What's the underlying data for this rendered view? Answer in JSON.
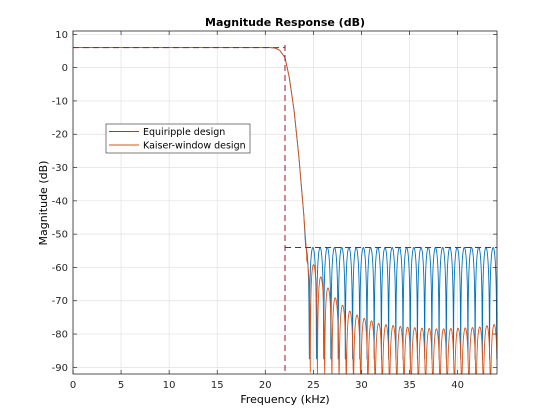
{
  "chart_data": {
    "type": "line",
    "title": "Magnitude Response (dB)",
    "xlabel": "Frequency (kHz)",
    "ylabel": "Magnitude (dB)",
    "xlim": [
      0,
      44.1
    ],
    "ylim": [
      -92,
      11
    ],
    "xticks": [
      0,
      5,
      10,
      15,
      20,
      25,
      30,
      35,
      40
    ],
    "yticks": [
      10,
      0,
      -10,
      -20,
      -30,
      -40,
      -50,
      -60,
      -70,
      -80,
      -90
    ],
    "grid": true,
    "legend_position": "upper-left",
    "passband_gain_db": 6.02,
    "stopband_level_db": -54,
    "edge_frequency_khz": 22.05,
    "series": [
      {
        "name": "Equiripple design",
        "color": "#0072BD",
        "passband_db": 6.02,
        "transition": [
          [
            20.5,
            6.02
          ],
          [
            21.0,
            5.9
          ],
          [
            21.5,
            5.2
          ],
          [
            22.05,
            3.0
          ],
          [
            22.5,
            -3
          ],
          [
            23.0,
            -13
          ],
          [
            23.5,
            -27
          ],
          [
            24.0,
            -44
          ],
          [
            24.2,
            -54
          ]
        ],
        "stopband_ripple_max_db": -54,
        "stopband_null_db": -92,
        "stopband_start_khz": 23.7,
        "stopband_period_khz": 0.75
      },
      {
        "name": "Kaiser-window design",
        "color": "#D95319",
        "passband_db": 6.02,
        "transition": [
          [
            20.5,
            6.02
          ],
          [
            21.0,
            5.9
          ],
          [
            21.5,
            5.2
          ],
          [
            22.05,
            3.0
          ],
          [
            22.5,
            -3
          ],
          [
            23.0,
            -13
          ],
          [
            23.5,
            -27
          ],
          [
            24.0,
            -44
          ],
          [
            24.3,
            -56
          ]
        ],
        "stopband_peaks_db": [
          [
            24.8,
            -58
          ],
          [
            25.6,
            -62
          ],
          [
            26.5,
            -66
          ],
          [
            27.5,
            -70
          ],
          [
            28.7,
            -73
          ],
          [
            30.0,
            -75
          ],
          [
            32.0,
            -77
          ],
          [
            35.0,
            -78
          ],
          [
            38.0,
            -78.5
          ],
          [
            42.0,
            -78
          ],
          [
            44.1,
            -77
          ]
        ],
        "stopband_null_db": -92,
        "stopband_period_khz": 0.75
      }
    ],
    "mask": {
      "color": "#A2142F",
      "style": "dashed",
      "passband_db": 6.02,
      "edge_khz": 22.05,
      "stopband_db": -54
    }
  }
}
